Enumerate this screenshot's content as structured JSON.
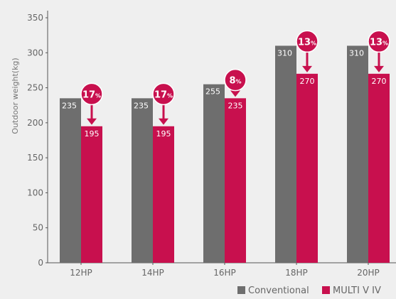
{
  "chart_data": {
    "type": "bar",
    "ylabel": "Outdoor weight(kg)",
    "ylim": [
      0,
      350
    ],
    "yticks": [
      0,
      50,
      100,
      150,
      200,
      250,
      300,
      350
    ],
    "categories": [
      "12HP",
      "14HP",
      "16HP",
      "18HP",
      "20HP"
    ],
    "series": [
      {
        "name": "Conventional",
        "values": [
          235,
          235,
          255,
          310,
          310
        ],
        "color": "#6e6e6e"
      },
      {
        "name": "MULTI V IV",
        "values": [
          195,
          195,
          235,
          270,
          270
        ],
        "color": "#c8104e"
      }
    ],
    "reduction_labels": [
      {
        "value": "17",
        "unit": "%"
      },
      {
        "value": "17",
        "unit": "%"
      },
      {
        "value": "8",
        "unit": "%"
      },
      {
        "value": "13",
        "unit": "%"
      },
      {
        "value": "13",
        "unit": "%"
      }
    ],
    "legend_placement": "bottom-right",
    "grid": false,
    "colors": {
      "background": "#efefef",
      "axis": "#555555",
      "tick_text": "#666666",
      "accent": "#c8104e",
      "bar_label": "#ffffff"
    }
  }
}
